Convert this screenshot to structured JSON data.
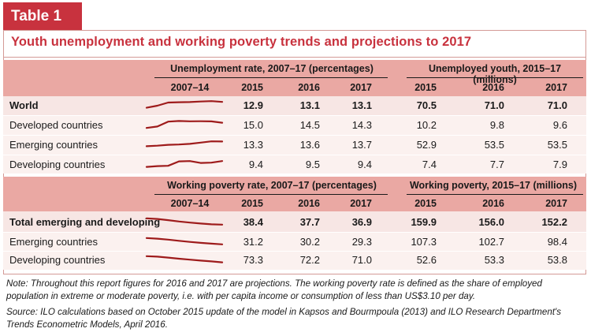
{
  "table_tag": "Table 1",
  "title": "Youth unemployment and working poverty trends and projections to 2017",
  "section1": {
    "group_a": "Unemployment rate, 2007–17 (percentages)",
    "group_b": "Unemployed youth, 2015–17 (millions)",
    "trend_label": "2007–14",
    "years": [
      "2015",
      "2016",
      "2017"
    ],
    "rows": [
      {
        "label": "World",
        "bold": true,
        "rate": [
          "12.9",
          "13.1",
          "13.1"
        ],
        "youth": [
          "70.5",
          "71.0",
          "71.0"
        ],
        "trend": [
          0.2,
          0.42,
          0.75,
          0.78,
          0.8,
          0.86,
          0.9,
          0.82
        ]
      },
      {
        "label": "Developed countries",
        "bold": false,
        "rate": [
          "15.0",
          "14.5",
          "14.3"
        ],
        "youth": [
          "10.2",
          "9.8",
          "9.6"
        ],
        "trend": [
          0.15,
          0.3,
          0.82,
          0.88,
          0.85,
          0.86,
          0.84,
          0.7
        ]
      },
      {
        "label": "Emerging countries",
        "bold": false,
        "rate": [
          "13.3",
          "13.6",
          "13.7"
        ],
        "youth": [
          "52.9",
          "53.5",
          "53.5"
        ],
        "trend": [
          0.3,
          0.36,
          0.45,
          0.48,
          0.55,
          0.68,
          0.82,
          0.8
        ]
      },
      {
        "label": "Developing countries",
        "bold": false,
        "rate": [
          "9.4",
          "9.5",
          "9.4"
        ],
        "youth": [
          "7.4",
          "7.7",
          "7.9"
        ],
        "trend": [
          0.2,
          0.28,
          0.32,
          0.78,
          0.82,
          0.62,
          0.65,
          0.82
        ]
      }
    ]
  },
  "section2": {
    "group_a": "Working poverty rate, 2007–17 (percentages)",
    "group_b": "Working poverty, 2015–17 (millions)",
    "trend_label": "2007–14",
    "years": [
      "2015",
      "2016",
      "2017"
    ],
    "rows": [
      {
        "label": "Total emerging and developing",
        "bold": true,
        "rate": [
          "38.4",
          "37.7",
          "36.9"
        ],
        "poverty": [
          "159.9",
          "156.0",
          "152.2"
        ],
        "trend": [
          0.85,
          0.78,
          0.66,
          0.52,
          0.4,
          0.3,
          0.22,
          0.18
        ]
      },
      {
        "label": "Emerging countries",
        "bold": false,
        "rate": [
          "31.2",
          "30.2",
          "29.3"
        ],
        "poverty": [
          "107.3",
          "102.7",
          "98.4"
        ],
        "trend": [
          0.85,
          0.78,
          0.68,
          0.56,
          0.44,
          0.34,
          0.26,
          0.18
        ]
      },
      {
        "label": "Developing countries",
        "bold": false,
        "rate": [
          "73.3",
          "72.2",
          "71.0"
        ],
        "poverty": [
          "52.6",
          "53.3",
          "53.8"
        ],
        "trend": [
          0.85,
          0.8,
          0.7,
          0.58,
          0.48,
          0.38,
          0.3,
          0.2
        ]
      }
    ]
  },
  "note": "Note: Throughout this report figures for 2016 and 2017 are projections. The working poverty rate is defined as the share of employed population in extreme or moderate poverty, i.e. with per capita income or consumption of less than US$3.10 per day.",
  "source": "Source: ILO calculations based on October 2015 update of the model in Kapsos and Bourmpoula (2013) and ILO Research Department's Trends Econometric Models, April 2016.",
  "colors": {
    "accent": "#c8323e",
    "header_band": "#eaa8a3",
    "row_band": "#f7e6e4",
    "sparkline": "#9e1b1b"
  }
}
